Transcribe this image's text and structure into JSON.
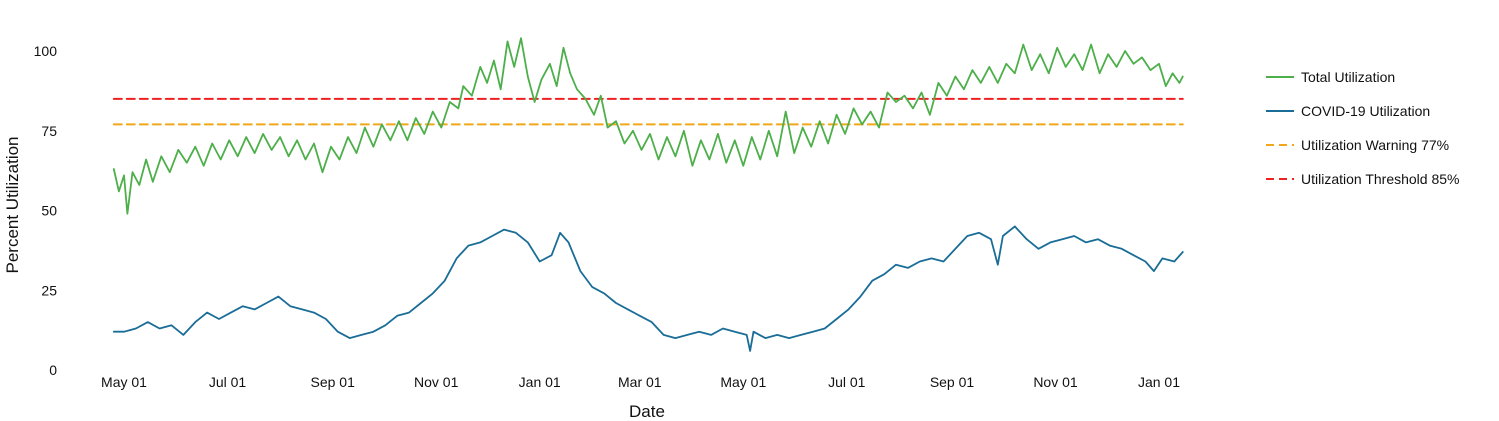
{
  "chart_data": {
    "type": "line",
    "title": "",
    "xlabel": "Date",
    "ylabel": "Percent Utilization",
    "x_range": [
      "2020-04-25",
      "2022-01-15"
    ],
    "ylim": [
      0,
      105
    ],
    "grid": false,
    "legend_position": "top-right",
    "x_ticks": [
      {
        "date": "2020-05-01",
        "label": "May 01"
      },
      {
        "date": "2020-07-01",
        "label": "Jul 01"
      },
      {
        "date": "2020-09-01",
        "label": "Sep 01"
      },
      {
        "date": "2020-11-01",
        "label": "Nov 01"
      },
      {
        "date": "2021-01-01",
        "label": "Jan 01"
      },
      {
        "date": "2021-03-01",
        "label": "Mar 01"
      },
      {
        "date": "2021-05-01",
        "label": "May 01"
      },
      {
        "date": "2021-07-01",
        "label": "Jul 01"
      },
      {
        "date": "2021-09-01",
        "label": "Sep 01"
      },
      {
        "date": "2021-11-01",
        "label": "Nov 01"
      },
      {
        "date": "2022-01-01",
        "label": "Jan 01"
      }
    ],
    "y_ticks": [
      0,
      25,
      50,
      75,
      100
    ],
    "series": [
      {
        "name": "Total Utilization",
        "color": "#4daf4a",
        "style": "solid",
        "points": [
          [
            "2020-04-25",
            63
          ],
          [
            "2020-04-28",
            56
          ],
          [
            "2020-05-01",
            61
          ],
          [
            "2020-05-03",
            49
          ],
          [
            "2020-05-06",
            62
          ],
          [
            "2020-05-10",
            58
          ],
          [
            "2020-05-14",
            66
          ],
          [
            "2020-05-18",
            59
          ],
          [
            "2020-05-23",
            67
          ],
          [
            "2020-05-28",
            62
          ],
          [
            "2020-06-02",
            69
          ],
          [
            "2020-06-07",
            65
          ],
          [
            "2020-06-12",
            70
          ],
          [
            "2020-06-17",
            64
          ],
          [
            "2020-06-22",
            71
          ],
          [
            "2020-06-27",
            66
          ],
          [
            "2020-07-02",
            72
          ],
          [
            "2020-07-07",
            67
          ],
          [
            "2020-07-12",
            73
          ],
          [
            "2020-07-17",
            68
          ],
          [
            "2020-07-22",
            74
          ],
          [
            "2020-07-27",
            69
          ],
          [
            "2020-08-01",
            73
          ],
          [
            "2020-08-06",
            67
          ],
          [
            "2020-08-11",
            72
          ],
          [
            "2020-08-16",
            66
          ],
          [
            "2020-08-21",
            71
          ],
          [
            "2020-08-26",
            62
          ],
          [
            "2020-08-31",
            70
          ],
          [
            "2020-09-05",
            66
          ],
          [
            "2020-09-10",
            73
          ],
          [
            "2020-09-15",
            68
          ],
          [
            "2020-09-20",
            76
          ],
          [
            "2020-09-25",
            70
          ],
          [
            "2020-09-30",
            77
          ],
          [
            "2020-10-05",
            72
          ],
          [
            "2020-10-10",
            78
          ],
          [
            "2020-10-15",
            72
          ],
          [
            "2020-10-20",
            79
          ],
          [
            "2020-10-25",
            74
          ],
          [
            "2020-10-30",
            81
          ],
          [
            "2020-11-04",
            76
          ],
          [
            "2020-11-09",
            84
          ],
          [
            "2020-11-14",
            82
          ],
          [
            "2020-11-17",
            89
          ],
          [
            "2020-11-22",
            86
          ],
          [
            "2020-11-27",
            95
          ],
          [
            "2020-12-01",
            90
          ],
          [
            "2020-12-05",
            97
          ],
          [
            "2020-12-09",
            88
          ],
          [
            "2020-12-13",
            103
          ],
          [
            "2020-12-17",
            95
          ],
          [
            "2020-12-21",
            104
          ],
          [
            "2020-12-25",
            92
          ],
          [
            "2020-12-29",
            84
          ],
          [
            "2021-01-02",
            91
          ],
          [
            "2021-01-07",
            96
          ],
          [
            "2021-01-11",
            89
          ],
          [
            "2021-01-15",
            101
          ],
          [
            "2021-01-19",
            93
          ],
          [
            "2021-01-23",
            88
          ],
          [
            "2021-01-28",
            85
          ],
          [
            "2021-02-02",
            80
          ],
          [
            "2021-02-06",
            86
          ],
          [
            "2021-02-10",
            76
          ],
          [
            "2021-02-15",
            78
          ],
          [
            "2021-02-20",
            71
          ],
          [
            "2021-02-25",
            75
          ],
          [
            "2021-03-02",
            69
          ],
          [
            "2021-03-07",
            74
          ],
          [
            "2021-03-12",
            66
          ],
          [
            "2021-03-17",
            73
          ],
          [
            "2021-03-22",
            67
          ],
          [
            "2021-03-27",
            75
          ],
          [
            "2021-04-01",
            64
          ],
          [
            "2021-04-06",
            72
          ],
          [
            "2021-04-11",
            66
          ],
          [
            "2021-04-16",
            74
          ],
          [
            "2021-04-21",
            65
          ],
          [
            "2021-04-26",
            72
          ],
          [
            "2021-05-01",
            64
          ],
          [
            "2021-05-06",
            73
          ],
          [
            "2021-05-11",
            66
          ],
          [
            "2021-05-16",
            75
          ],
          [
            "2021-05-21",
            67
          ],
          [
            "2021-05-26",
            81
          ],
          [
            "2021-05-31",
            68
          ],
          [
            "2021-06-05",
            76
          ],
          [
            "2021-06-10",
            70
          ],
          [
            "2021-06-15",
            78
          ],
          [
            "2021-06-20",
            71
          ],
          [
            "2021-06-25",
            80
          ],
          [
            "2021-06-30",
            74
          ],
          [
            "2021-07-05",
            82
          ],
          [
            "2021-07-10",
            77
          ],
          [
            "2021-07-15",
            81
          ],
          [
            "2021-07-20",
            76
          ],
          [
            "2021-07-25",
            87
          ],
          [
            "2021-07-30",
            84
          ],
          [
            "2021-08-04",
            86
          ],
          [
            "2021-08-09",
            82
          ],
          [
            "2021-08-14",
            87
          ],
          [
            "2021-08-19",
            80
          ],
          [
            "2021-08-24",
            90
          ],
          [
            "2021-08-29",
            86
          ],
          [
            "2021-09-03",
            92
          ],
          [
            "2021-09-08",
            88
          ],
          [
            "2021-09-13",
            94
          ],
          [
            "2021-09-18",
            90
          ],
          [
            "2021-09-23",
            95
          ],
          [
            "2021-09-28",
            90
          ],
          [
            "2021-10-03",
            96
          ],
          [
            "2021-10-08",
            93
          ],
          [
            "2021-10-13",
            102
          ],
          [
            "2021-10-18",
            94
          ],
          [
            "2021-10-23",
            99
          ],
          [
            "2021-10-28",
            93
          ],
          [
            "2021-11-02",
            101
          ],
          [
            "2021-11-07",
            95
          ],
          [
            "2021-11-12",
            99
          ],
          [
            "2021-11-17",
            94
          ],
          [
            "2021-11-22",
            102
          ],
          [
            "2021-11-27",
            93
          ],
          [
            "2021-12-02",
            99
          ],
          [
            "2021-12-07",
            95
          ],
          [
            "2021-12-12",
            100
          ],
          [
            "2021-12-17",
            96
          ],
          [
            "2021-12-22",
            98
          ],
          [
            "2021-12-27",
            94
          ],
          [
            "2022-01-01",
            96
          ],
          [
            "2022-01-05",
            89
          ],
          [
            "2022-01-09",
            93
          ],
          [
            "2022-01-13",
            90
          ],
          [
            "2022-01-15",
            92
          ]
        ]
      },
      {
        "name": "COVID-19 Utilization",
        "color": "#1a6d97",
        "style": "solid",
        "points": [
          [
            "2020-04-25",
            12
          ],
          [
            "2020-05-01",
            12
          ],
          [
            "2020-05-08",
            13
          ],
          [
            "2020-05-15",
            15
          ],
          [
            "2020-05-22",
            13
          ],
          [
            "2020-05-29",
            14
          ],
          [
            "2020-06-05",
            11
          ],
          [
            "2020-06-12",
            15
          ],
          [
            "2020-06-19",
            18
          ],
          [
            "2020-06-26",
            16
          ],
          [
            "2020-07-03",
            18
          ],
          [
            "2020-07-10",
            20
          ],
          [
            "2020-07-17",
            19
          ],
          [
            "2020-07-24",
            21
          ],
          [
            "2020-07-31",
            23
          ],
          [
            "2020-08-07",
            20
          ],
          [
            "2020-08-14",
            19
          ],
          [
            "2020-08-21",
            18
          ],
          [
            "2020-08-28",
            16
          ],
          [
            "2020-09-04",
            12
          ],
          [
            "2020-09-11",
            10
          ],
          [
            "2020-09-18",
            11
          ],
          [
            "2020-09-25",
            12
          ],
          [
            "2020-10-02",
            14
          ],
          [
            "2020-10-09",
            17
          ],
          [
            "2020-10-16",
            18
          ],
          [
            "2020-10-23",
            21
          ],
          [
            "2020-10-30",
            24
          ],
          [
            "2020-11-06",
            28
          ],
          [
            "2020-11-13",
            35
          ],
          [
            "2020-11-20",
            39
          ],
          [
            "2020-11-27",
            40
          ],
          [
            "2020-12-04",
            42
          ],
          [
            "2020-12-11",
            44
          ],
          [
            "2020-12-18",
            43
          ],
          [
            "2020-12-25",
            40
          ],
          [
            "2021-01-01",
            34
          ],
          [
            "2021-01-08",
            36
          ],
          [
            "2021-01-13",
            43
          ],
          [
            "2021-01-18",
            40
          ],
          [
            "2021-01-25",
            31
          ],
          [
            "2021-02-01",
            26
          ],
          [
            "2021-02-08",
            24
          ],
          [
            "2021-02-15",
            21
          ],
          [
            "2021-02-22",
            19
          ],
          [
            "2021-03-01",
            17
          ],
          [
            "2021-03-08",
            15
          ],
          [
            "2021-03-15",
            11
          ],
          [
            "2021-03-22",
            10
          ],
          [
            "2021-03-29",
            11
          ],
          [
            "2021-04-05",
            12
          ],
          [
            "2021-04-12",
            11
          ],
          [
            "2021-04-19",
            13
          ],
          [
            "2021-04-26",
            12
          ],
          [
            "2021-05-03",
            11
          ],
          [
            "2021-05-05",
            6
          ],
          [
            "2021-05-07",
            12
          ],
          [
            "2021-05-14",
            10
          ],
          [
            "2021-05-21",
            11
          ],
          [
            "2021-05-28",
            10
          ],
          [
            "2021-06-04",
            11
          ],
          [
            "2021-06-11",
            12
          ],
          [
            "2021-06-18",
            13
          ],
          [
            "2021-06-25",
            16
          ],
          [
            "2021-07-02",
            19
          ],
          [
            "2021-07-09",
            23
          ],
          [
            "2021-07-16",
            28
          ],
          [
            "2021-07-23",
            30
          ],
          [
            "2021-07-30",
            33
          ],
          [
            "2021-08-06",
            32
          ],
          [
            "2021-08-13",
            34
          ],
          [
            "2021-08-20",
            35
          ],
          [
            "2021-08-27",
            34
          ],
          [
            "2021-09-03",
            38
          ],
          [
            "2021-09-10",
            42
          ],
          [
            "2021-09-17",
            43
          ],
          [
            "2021-09-24",
            41
          ],
          [
            "2021-09-28",
            33
          ],
          [
            "2021-10-01",
            42
          ],
          [
            "2021-10-08",
            45
          ],
          [
            "2021-10-15",
            41
          ],
          [
            "2021-10-22",
            38
          ],
          [
            "2021-10-29",
            40
          ],
          [
            "2021-11-05",
            41
          ],
          [
            "2021-11-12",
            42
          ],
          [
            "2021-11-19",
            40
          ],
          [
            "2021-11-26",
            41
          ],
          [
            "2021-12-03",
            39
          ],
          [
            "2021-12-10",
            38
          ],
          [
            "2021-12-17",
            36
          ],
          [
            "2021-12-24",
            34
          ],
          [
            "2021-12-29",
            31
          ],
          [
            "2022-01-03",
            35
          ],
          [
            "2022-01-10",
            34
          ],
          [
            "2022-01-15",
            37
          ]
        ]
      },
      {
        "name": "Utilization Warning 77%",
        "color": "#f0a81a",
        "style": "dashed",
        "points": [
          [
            "2020-04-25",
            77
          ],
          [
            "2022-01-15",
            77
          ]
        ]
      },
      {
        "name": "Utilization Threshold 85%",
        "color": "#ee2020",
        "style": "dashed",
        "points": [
          [
            "2020-04-25",
            85
          ],
          [
            "2022-01-15",
            85
          ]
        ]
      }
    ]
  }
}
